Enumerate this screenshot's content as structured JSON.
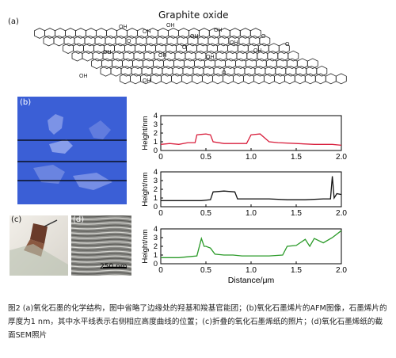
{
  "panel_a": {
    "label": "(a)",
    "title": "Graphite oxide",
    "groups": [
      "OH",
      "OH",
      "OH",
      "OH",
      "OH",
      "OH",
      "OH",
      "OH",
      "OH",
      "OH",
      "OH",
      "OH",
      "O",
      "O",
      "O",
      "O",
      "O"
    ]
  },
  "panel_b": {
    "label": "(b)"
  },
  "panel_c": {
    "label": "(c)"
  },
  "panel_d": {
    "label": "(d)",
    "scalebar": "250 nm"
  },
  "colors": {
    "trace1": "#d81e3c",
    "trace2": "#111111",
    "trace3": "#2a9a28",
    "afm_bg": "#3b5fd6"
  },
  "chart_data": [
    {
      "type": "line",
      "xlabel": "",
      "ylabel": "Height/nm",
      "xlim": [
        0,
        2.0
      ],
      "ylim": [
        0,
        4
      ],
      "xticks": [
        "0",
        "0.5",
        "1.0",
        "1.5",
        "2.0"
      ],
      "yticks": [
        "0",
        "1",
        "2",
        "3",
        "4"
      ],
      "series": [
        {
          "x": [
            0,
            0.1,
            0.2,
            0.3,
            0.38,
            0.4,
            0.5,
            0.55,
            0.58,
            0.7,
            0.8,
            0.95,
            1.0,
            1.1,
            1.2,
            1.3,
            1.5,
            1.7,
            1.9,
            2.0
          ],
          "y": [
            0.7,
            0.8,
            0.7,
            0.9,
            0.9,
            1.8,
            1.9,
            1.8,
            1.0,
            0.8,
            0.8,
            0.8,
            1.8,
            1.9,
            1.0,
            0.9,
            0.8,
            0.7,
            0.7,
            0.6
          ]
        }
      ]
    },
    {
      "type": "line",
      "xlabel": "",
      "ylabel": "Height/nm",
      "xlim": [
        0,
        2.0
      ],
      "ylim": [
        0,
        4
      ],
      "xticks": [
        "0",
        "0.5",
        "1.0",
        "1.5",
        "2.0"
      ],
      "yticks": [
        "0",
        "1",
        "2",
        "3",
        "4"
      ],
      "series": [
        {
          "x": [
            0,
            0.1,
            0.2,
            0.3,
            0.45,
            0.55,
            0.58,
            0.7,
            0.82,
            0.85,
            1.0,
            1.2,
            1.4,
            1.6,
            1.8,
            1.88,
            1.9,
            1.92,
            1.95,
            2.0
          ],
          "y": [
            0.7,
            0.7,
            0.7,
            0.7,
            0.7,
            0.8,
            1.7,
            1.8,
            1.7,
            0.9,
            0.9,
            0.9,
            0.8,
            0.8,
            0.9,
            0.9,
            3.5,
            1.0,
            1.5,
            1.4
          ]
        }
      ]
    },
    {
      "type": "line",
      "xlabel": "Distance/μm",
      "ylabel": "Height/nm",
      "xlim": [
        0,
        2.0
      ],
      "ylim": [
        0,
        4
      ],
      "xticks": [
        "0",
        "0.5",
        "1.0",
        "1.5",
        "2.0"
      ],
      "yticks": [
        "0",
        "1",
        "2",
        "3",
        "4"
      ],
      "series": [
        {
          "x": [
            0,
            0.1,
            0.2,
            0.3,
            0.4,
            0.45,
            0.48,
            0.5,
            0.55,
            0.6,
            0.7,
            0.8,
            0.9,
            1.0,
            1.2,
            1.35,
            1.4,
            1.5,
            1.6,
            1.65,
            1.7,
            1.8,
            1.9,
            2.0
          ],
          "y": [
            0.7,
            0.7,
            0.7,
            0.8,
            0.9,
            2.9,
            2.0,
            2.0,
            1.8,
            1.1,
            1.0,
            1.0,
            0.9,
            0.9,
            0.9,
            1.0,
            2.0,
            2.1,
            2.8,
            2.0,
            2.9,
            2.4,
            3.0,
            3.8
          ]
        }
      ]
    }
  ],
  "caption": "图2 (a)氧化石墨的化学结构，图中省略了边缘处的羟基和羧基官能团；(b)氧化石墨烯片的AFM图像，石墨烯片的厚度为1 nm，其中水平线表示右侧相应高度曲线的位置；(c)折叠的氧化石墨烯纸的照片；(d)氧化石墨烯纸的截面SEM照片"
}
